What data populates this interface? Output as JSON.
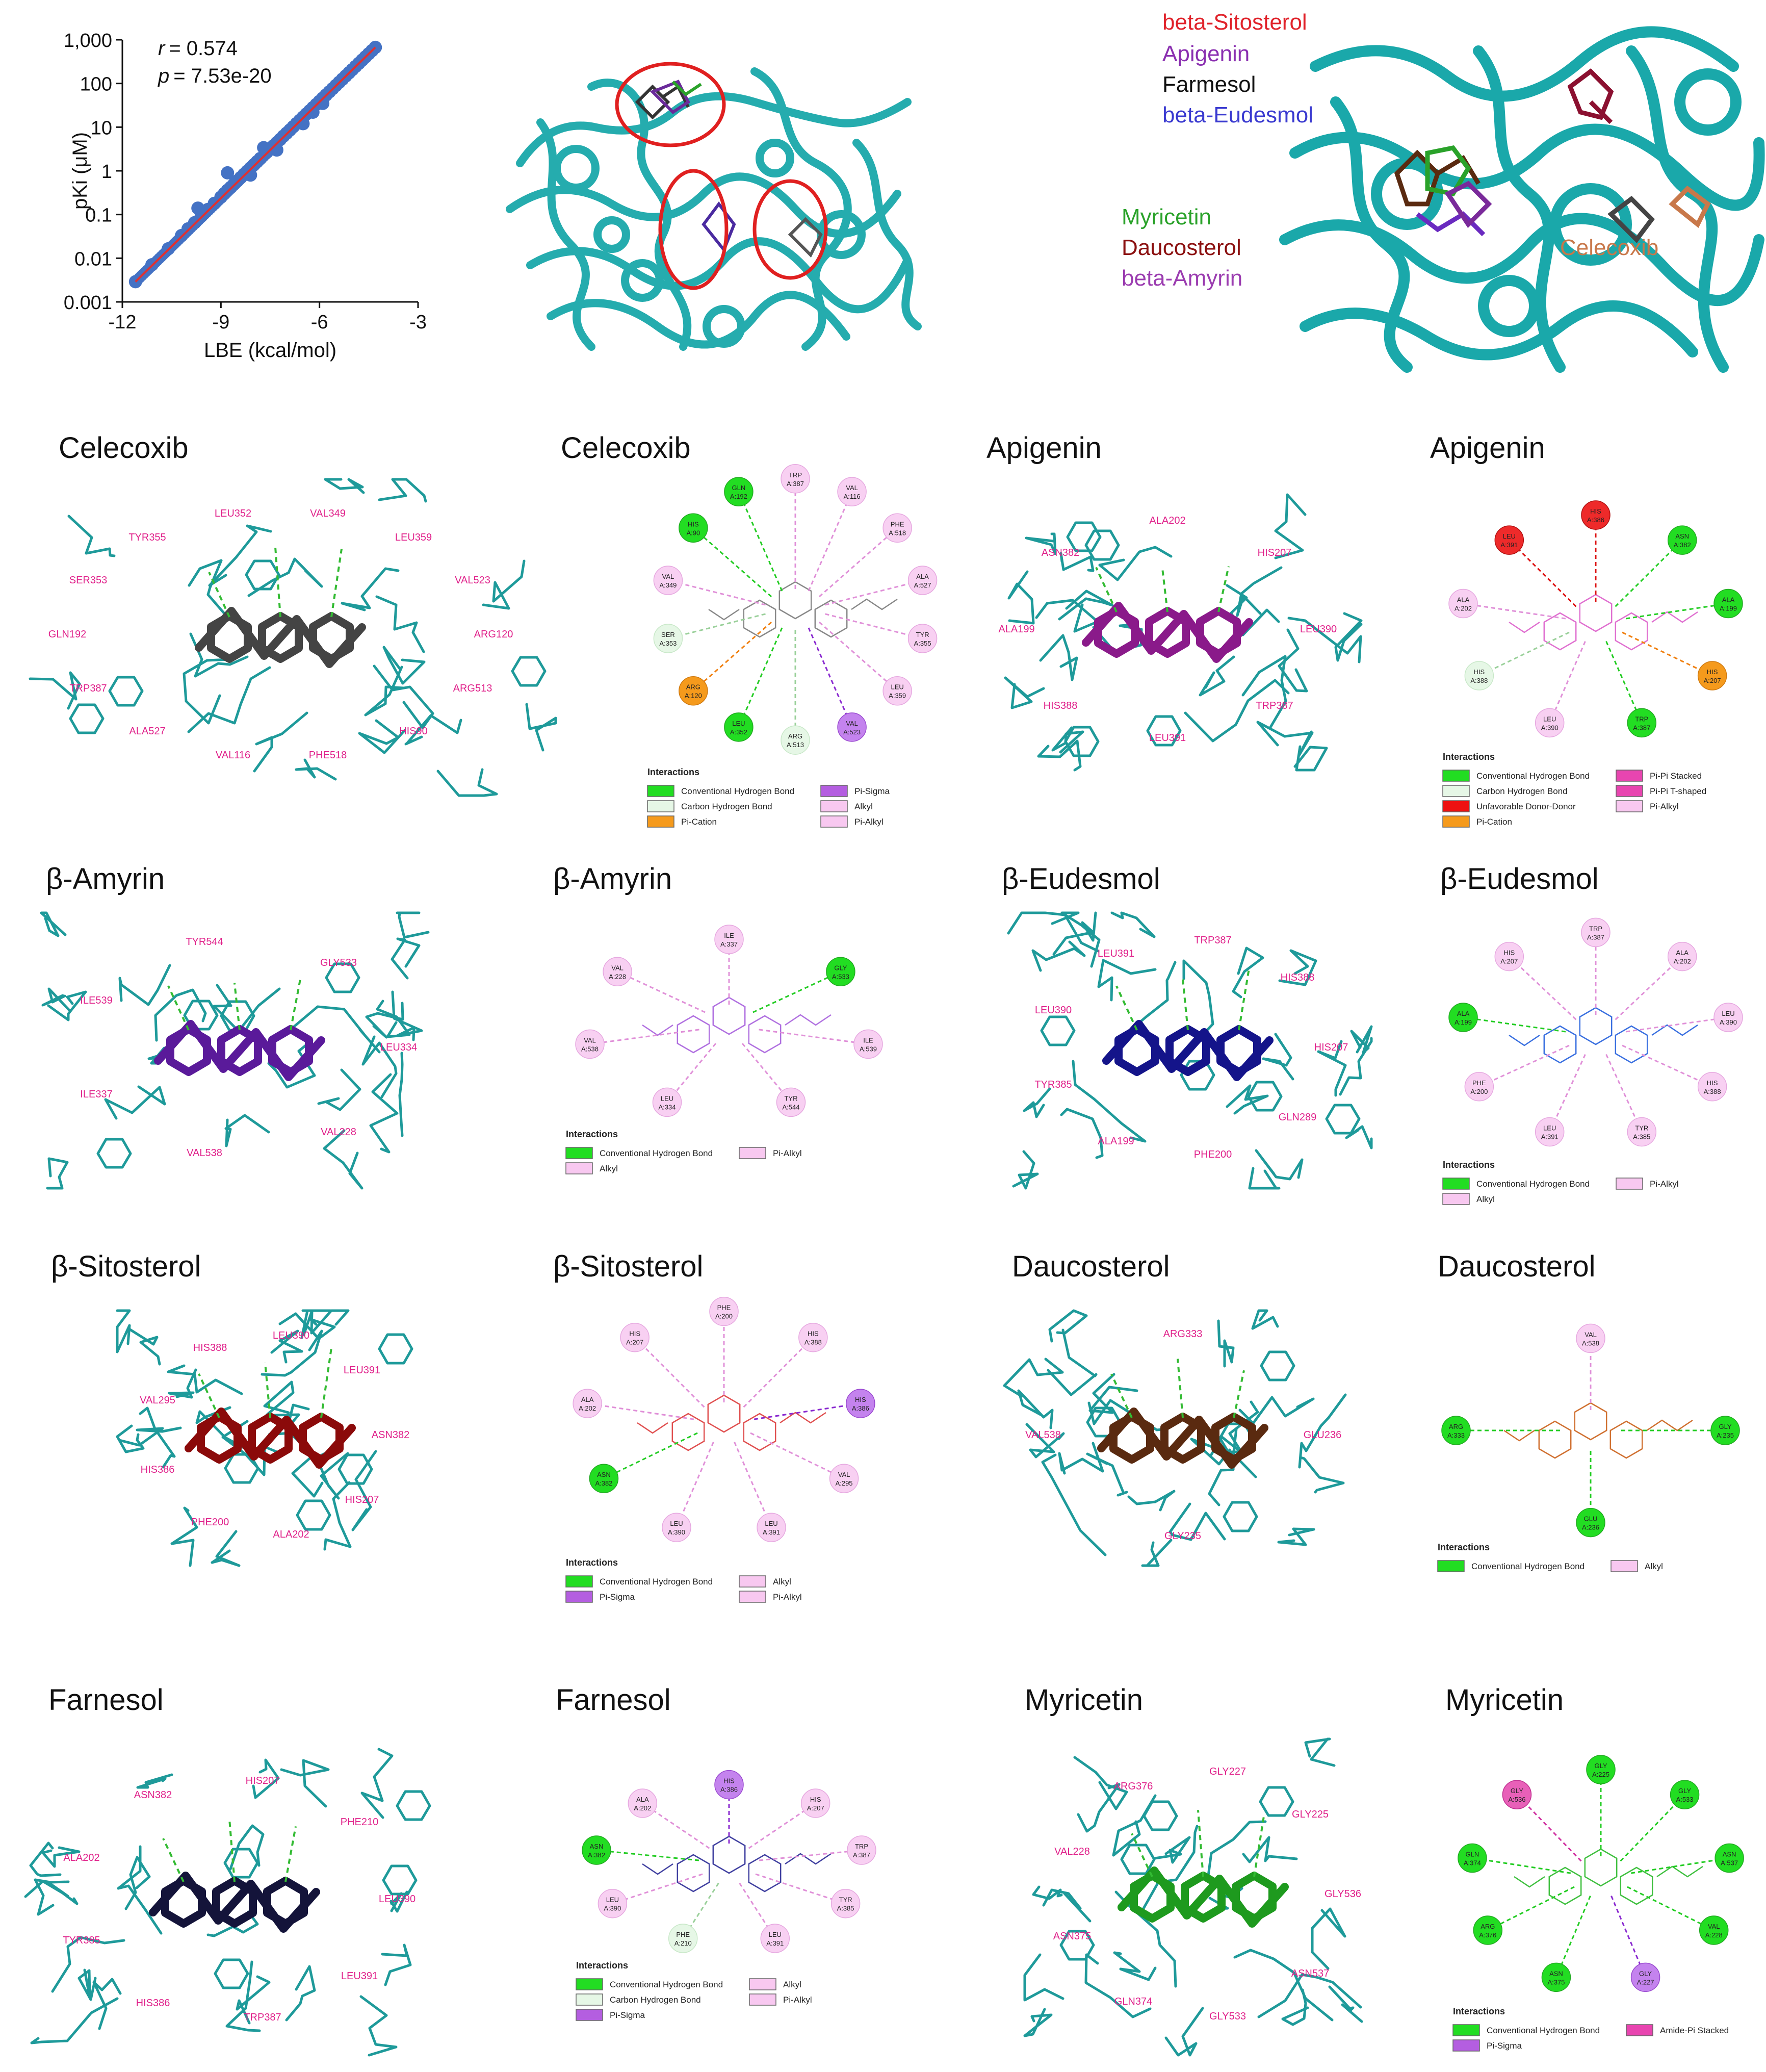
{
  "figure": {
    "scatter": {
      "r_label": "r",
      "r_value": "= 0.574",
      "p_label": "p",
      "p_value": "= 7.53e-20"
    },
    "legend_top_right": [
      {
        "name": "beta-Sitosterol",
        "color": "#e0222a"
      },
      {
        "name": "Apigenin",
        "color": "#8a2fb0"
      },
      {
        "name": "Farmesol",
        "color": "#111111"
      },
      {
        "name": "beta-Eudesmol",
        "color": "#3a3ad0"
      },
      {
        "name": "Myricetin",
        "color": "#2aa22a"
      },
      {
        "name": "Daucosterol",
        "color": "#8b1010"
      },
      {
        "name": "beta-Amyrin",
        "color": "#9b3cb0"
      },
      {
        "name": "Celecoxib",
        "color": "#c8784a"
      }
    ],
    "panels": [
      {
        "title": "Celecoxib",
        "ligand_color": "#444444"
      },
      {
        "title": "Celecoxib"
      },
      {
        "title": "Apigenin",
        "ligand_color": "#8a1a8a"
      },
      {
        "title": "Apigenin"
      },
      {
        "title": "β-Amyrin",
        "ligand_color": "#5a1a9a"
      },
      {
        "title": "β-Amyrin"
      },
      {
        "title": "β-Eudesmol",
        "ligand_color": "#14148a"
      },
      {
        "title": "β-Eudesmol"
      },
      {
        "title": "β-Sitosterol",
        "ligand_color": "#8b0a0a"
      },
      {
        "title": "β-Sitosterol"
      },
      {
        "title": "Daucosterol",
        "ligand_color": "#5a2a10"
      },
      {
        "title": "Daucosterol"
      },
      {
        "title": "Farnesol",
        "ligand_color": "#14143a"
      },
      {
        "title": "Farnesol"
      },
      {
        "title": "Myricetin",
        "ligand_color": "#1e9a1e"
      },
      {
        "title": "Myricetin"
      }
    ],
    "residues_3d": {
      "celecoxib": [
        "ARG120",
        "ARG513",
        "HIS90",
        "PHE518",
        "VAL116",
        "ALA527",
        "TRP387",
        "GLN192",
        "SER353",
        "TYR355",
        "LEU352",
        "VAL349",
        "LEU359",
        "VAL523"
      ],
      "apigenin": [
        "LEU390",
        "TRP387",
        "LEU391",
        "HIS388",
        "ALA199",
        "ASN382",
        "ALA202",
        "HIS207"
      ],
      "amyrin": [
        "LEU334",
        "VAL228",
        "VAL538",
        "ILE337",
        "ILE539",
        "TYR544",
        "GLY533"
      ],
      "eudesmol": [
        "HIS207",
        "GLN289",
        "PHE200",
        "ALA199",
        "TYR385",
        "LEU390",
        "LEU391",
        "TRP387",
        "HIS388"
      ],
      "sitosterol": [
        "ASN382",
        "HIS207",
        "ALA202",
        "PHE200",
        "HIS386",
        "VAL295",
        "HIS388",
        "LEU390",
        "LEU391"
      ],
      "daucosterol": [
        "GLU236",
        "GLY235",
        "VAL538",
        "ARG333"
      ],
      "farnesol": [
        "LEU390",
        "LEU391",
        "TRP387",
        "HIS386",
        "TYR385",
        "ALA202",
        "ASN382",
        "HIS207",
        "PHE210"
      ],
      "myricetin": [
        "GLY536",
        "ASN537",
        "GLY533",
        "GLN374",
        "ASN375",
        "VAL228",
        "ARG376",
        "GLY227",
        "GLY225"
      ]
    },
    "interaction_diagrams": {
      "celecoxib": {
        "residues": [
          [
            "TRP",
            "A:387",
            "pialkyl"
          ],
          [
            "VAL",
            "A:116",
            "alkyl"
          ],
          [
            "PHE",
            "A:518",
            "pialkyl"
          ],
          [
            "ALA",
            "A:527",
            "alkyl"
          ],
          [
            "TYR",
            "A:355",
            "pialkyl"
          ],
          [
            "LEU",
            "A:359",
            "alkyl"
          ],
          [
            "VAL",
            "A:523",
            "pisigma"
          ],
          [
            "ARG",
            "A:513",
            "chb"
          ],
          [
            "LEU",
            "A:352",
            "hb"
          ],
          [
            "ARG",
            "A:120",
            "cation"
          ],
          [
            "SER",
            "A:353",
            "chb"
          ],
          [
            "VAL",
            "A:349",
            "alkyl"
          ],
          [
            "HIS",
            "A:90",
            "hb"
          ],
          [
            "GLN",
            "A:192",
            "hb"
          ]
        ],
        "legend_title": "Interactions",
        "legend": [
          [
            "Conventional Hydrogen Bond",
            "#22dd22"
          ],
          [
            "Pi-Sigma",
            "#b45ee0"
          ],
          [
            "Carbon Hydrogen Bond",
            "#e6f7e6"
          ],
          [
            "Alkyl",
            "#f8c8f0"
          ],
          [
            "Pi-Cation",
            "#f59a1c"
          ],
          [
            "Pi-Alkyl",
            "#f8c8f0"
          ]
        ]
      },
      "apigenin": {
        "residues": [
          [
            "HIS",
            "A:386",
            "unf"
          ],
          [
            "ASN",
            "A:382",
            "hb"
          ],
          [
            "ALA",
            "A:199",
            "hb"
          ],
          [
            "HIS",
            "A:207",
            "cation"
          ],
          [
            "TRP",
            "A:387",
            "hb"
          ],
          [
            "LEU",
            "A:390",
            "alkyl"
          ],
          [
            "HIS",
            "A:388",
            "chb"
          ],
          [
            "ALA",
            "A:202",
            "alkyl"
          ],
          [
            "LEU",
            "A:391",
            "unf"
          ]
        ],
        "legend_title": "Interactions",
        "legend": [
          [
            "Conventional Hydrogen Bond",
            "#22dd22"
          ],
          [
            "Pi-Pi Stacked",
            "#e845b0"
          ],
          [
            "Carbon Hydrogen Bond",
            "#e6f7e6"
          ],
          [
            "Pi-Pi T-shaped",
            "#e845b0"
          ],
          [
            "Unfavorable Donor-Donor",
            "#ee1111"
          ],
          [
            "Pi-Alkyl",
            "#f8c8f0"
          ],
          [
            "Pi-Cation",
            "#f59a1c"
          ],
          [
            "",
            ""
          ]
        ]
      },
      "amyrin": {
        "residues": [
          [
            "ILE",
            "A:337",
            "alkyl"
          ],
          [
            "GLY",
            "A:533",
            "hb"
          ],
          [
            "ILE",
            "A:539",
            "alkyl"
          ],
          [
            "TYR",
            "A:544",
            "alkyl"
          ],
          [
            "LEU",
            "A:334",
            "alkyl"
          ],
          [
            "VAL",
            "A:538",
            "alkyl"
          ],
          [
            "VAL",
            "A:228",
            "alkyl"
          ]
        ],
        "legend_title": "Interactions",
        "legend": [
          [
            "Conventional Hydrogen Bond",
            "#22dd22"
          ],
          [
            "Pi-Alkyl",
            "#f8c8f0"
          ],
          [
            "Alkyl",
            "#f8c8f0"
          ],
          [
            "",
            ""
          ]
        ]
      },
      "eudesmol": {
        "residues": [
          [
            "TRP",
            "A:387",
            "alkyl"
          ],
          [
            "ALA",
            "A:202",
            "alkyl"
          ],
          [
            "LEU",
            "A:390",
            "alkyl"
          ],
          [
            "HIS",
            "A:388",
            "alkyl"
          ],
          [
            "TYR",
            "A:385",
            "alkyl"
          ],
          [
            "LEU",
            "A:391",
            "alkyl"
          ],
          [
            "PHE",
            "A:200",
            "alkyl"
          ],
          [
            "ALA",
            "A:199",
            "hb"
          ],
          [
            "HIS",
            "A:207",
            "alkyl"
          ]
        ],
        "legend_title": "Interactions",
        "legend": [
          [
            "Conventional Hydrogen Bond",
            "#22dd22"
          ],
          [
            "Pi-Alkyl",
            "#f8c8f0"
          ],
          [
            "Alkyl",
            "#f8c8f0"
          ],
          [
            "",
            ""
          ]
        ]
      },
      "sitosterol": {
        "residues": [
          [
            "PHE",
            "A:200",
            "alkyl"
          ],
          [
            "HIS",
            "A:388",
            "alkyl"
          ],
          [
            "HIS",
            "A:386",
            "pisigma"
          ],
          [
            "VAL",
            "A:295",
            "alkyl"
          ],
          [
            "LEU",
            "A:391",
            "alkyl"
          ],
          [
            "LEU",
            "A:390",
            "alkyl"
          ],
          [
            "ASN",
            "A:382",
            "hb"
          ],
          [
            "ALA",
            "A:202",
            "alkyl"
          ],
          [
            "HIS",
            "A:207",
            "alkyl"
          ]
        ],
        "legend_title": "Interactions",
        "legend": [
          [
            "Conventional Hydrogen Bond",
            "#22dd22"
          ],
          [
            "Alkyl",
            "#f8c8f0"
          ],
          [
            "Pi-Sigma",
            "#b45ee0"
          ],
          [
            "Pi-Alkyl",
            "#f8c8f0"
          ]
        ]
      },
      "daucosterol": {
        "residues": [
          [
            "VAL",
            "A:538",
            "alkyl"
          ],
          [
            "GLY",
            "A:235",
            "hb"
          ],
          [
            "GLU",
            "A:236",
            "hb"
          ],
          [
            "ARG",
            "A:333",
            "hb"
          ]
        ],
        "legend_title": "Interactions",
        "legend": [
          [
            "Conventional Hydrogen Bond",
            "#22dd22"
          ],
          [
            "Alkyl",
            "#f8c8f0"
          ]
        ]
      },
      "farnesol": {
        "residues": [
          [
            "HIS",
            "A:386",
            "pisigma"
          ],
          [
            "HIS",
            "A:207",
            "alkyl"
          ],
          [
            "TRP",
            "A:387",
            "alkyl"
          ],
          [
            "TYR",
            "A:385",
            "alkyl"
          ],
          [
            "LEU",
            "A:391",
            "alkyl"
          ],
          [
            "PHE",
            "A:210",
            "chb"
          ],
          [
            "LEU",
            "A:390",
            "alkyl"
          ],
          [
            "ASN",
            "A:382",
            "hb"
          ],
          [
            "ALA",
            "A:202",
            "alkyl"
          ]
        ],
        "legend_title": "Interactions",
        "legend": [
          [
            "Conventional Hydrogen Bond",
            "#22dd22"
          ],
          [
            "Alkyl",
            "#f8c8f0"
          ],
          [
            "Carbon Hydrogen Bond",
            "#e6f7e6"
          ],
          [
            "Pi-Alkyl",
            "#f8c8f0"
          ],
          [
            "Pi-Sigma",
            "#b45ee0"
          ],
          [
            "",
            ""
          ]
        ]
      },
      "myricetin": {
        "residues": [
          [
            "GLY",
            "A:225",
            "hb"
          ],
          [
            "GLY",
            "A:533",
            "hb"
          ],
          [
            "ASN",
            "A:537",
            "hb"
          ],
          [
            "VAL",
            "A:228",
            "hb"
          ],
          [
            "GLY",
            "A:227",
            "pisigma"
          ],
          [
            "ASN",
            "A:375",
            "hb"
          ],
          [
            "ARG",
            "A:376",
            "hb"
          ],
          [
            "GLN",
            "A:374",
            "hb"
          ],
          [
            "GLY",
            "A:536",
            "amide"
          ]
        ],
        "legend_title": "Interactions",
        "legend": [
          [
            "Conventional Hydrogen Bond",
            "#22dd22"
          ],
          [
            "Amide-Pi Stacked",
            "#e845b0"
          ],
          [
            "Pi-Sigma",
            "#b45ee0"
          ],
          [
            "",
            ""
          ]
        ]
      }
    }
  },
  "chart_data": {
    "type": "scatter",
    "xlabel": "LBE (kcal/mol)",
    "ylabel": "pKi (μM)",
    "xlim": [
      -12,
      -3
    ],
    "ylim_log": [
      0.001,
      1000
    ],
    "xticks": [
      "-12",
      "-9",
      "-6",
      "-3"
    ],
    "yticks": [
      "1,000",
      "100",
      "10",
      "1",
      "0.1",
      "0.01",
      "0.001"
    ],
    "y_log_scale": true,
    "points": [
      [
        -11.6,
        0.0029
      ],
      [
        -11.1,
        0.0071
      ],
      [
        -10.6,
        0.0165
      ],
      [
        -10.2,
        0.033
      ],
      [
        -10.0,
        0.047
      ],
      [
        -9.8,
        0.065
      ],
      [
        -9.6,
        0.092
      ],
      [
        -9.4,
        0.13
      ],
      [
        -9.2,
        0.18
      ],
      [
        -9.0,
        0.25
      ],
      [
        -8.9,
        0.3
      ],
      [
        -8.8,
        0.36
      ],
      [
        -8.7,
        0.42
      ],
      [
        -8.6,
        0.5
      ],
      [
        -8.5,
        0.59
      ],
      [
        -8.8,
        0.9
      ],
      [
        -8.4,
        0.7
      ],
      [
        -8.3,
        0.83
      ],
      [
        -8.2,
        0.98
      ],
      [
        -8.1,
        1.16
      ],
      [
        -8.0,
        1.37
      ],
      [
        -7.9,
        1.62
      ],
      [
        -7.8,
        1.92
      ],
      [
        -7.7,
        3.4
      ],
      [
        -7.6,
        2.68
      ],
      [
        -7.5,
        3.2
      ],
      [
        -7.4,
        3.75
      ],
      [
        -7.3,
        4.4
      ],
      [
        -7.2,
        5.2
      ],
      [
        -7.1,
        6.2
      ],
      [
        -7.0,
        7.3
      ],
      [
        -6.9,
        8.6
      ],
      [
        -6.8,
        10.2
      ],
      [
        -6.7,
        12.1
      ],
      [
        -6.6,
        14.3
      ],
      [
        -6.5,
        16.9
      ],
      [
        -6.4,
        20.0
      ],
      [
        -6.3,
        23.6
      ],
      [
        -6.2,
        27.9
      ],
      [
        -6.1,
        33.0
      ],
      [
        -6.0,
        39.0
      ],
      [
        -5.9,
        46.1
      ],
      [
        -5.8,
        54.5
      ],
      [
        -5.7,
        64.4
      ],
      [
        -5.6,
        76.1
      ],
      [
        -5.5,
        90.0
      ],
      [
        -5.4,
        106.4
      ],
      [
        -5.3,
        125.8
      ],
      [
        -5.2,
        148.7
      ],
      [
        -5.1,
        175.8
      ],
      [
        -5.0,
        207.8
      ],
      [
        -4.9,
        245.6
      ],
      [
        -4.8,
        290.3
      ],
      [
        -4.7,
        343.2
      ],
      [
        -4.6,
        405.7
      ],
      [
        -4.5,
        479.6
      ],
      [
        -4.4,
        566.9
      ],
      [
        -4.3,
        670.1
      ],
      [
        -9.7,
        0.14
      ],
      [
        -6.5,
        12.0
      ],
      [
        -7.3,
        3.0
      ],
      [
        -8.1,
        0.8
      ],
      [
        -5.9,
        35.0
      ],
      [
        -6.2,
        22.0
      ]
    ],
    "fit_line": [
      [
        -11.6,
        0.0029
      ],
      [
        -4.3,
        670
      ]
    ],
    "series": [
      {
        "name": "",
        "color": "#4472c4"
      }
    ],
    "fit_color": "#e03030"
  }
}
